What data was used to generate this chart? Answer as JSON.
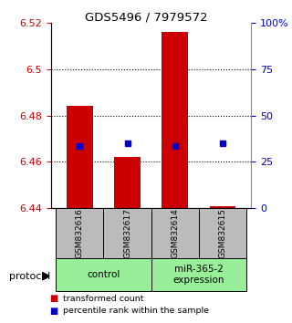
{
  "title": "GDS5496 / 7979572",
  "samples": [
    "GSM832616",
    "GSM832617",
    "GSM832614",
    "GSM832615"
  ],
  "bar_bottoms": [
    6.44,
    6.44,
    6.44,
    6.44
  ],
  "bar_tops": [
    6.484,
    6.462,
    6.516,
    6.441
  ],
  "percentile_values": [
    6.467,
    6.468,
    6.467,
    6.468
  ],
  "ylim_left": [
    6.44,
    6.52
  ],
  "ylim_right": [
    0,
    100
  ],
  "yticks_left": [
    6.44,
    6.46,
    6.48,
    6.5,
    6.52
  ],
  "yticks_right": [
    0,
    25,
    50,
    75,
    100
  ],
  "ytick_labels_left": [
    "6.44",
    "6.46",
    "6.48",
    "6.5",
    "6.52"
  ],
  "ytick_labels_right": [
    "0",
    "25",
    "50",
    "75",
    "100%"
  ],
  "bar_color": "#cc0000",
  "percentile_color": "#0000cc",
  "groups": [
    {
      "label": "control",
      "indices": [
        0,
        1
      ],
      "color": "#99ee99"
    },
    {
      "label": "miR-365-2\nexpression",
      "indices": [
        2,
        3
      ],
      "color": "#99ee99"
    }
  ],
  "sample_box_color": "#bbbbbb",
  "grid_color": "#000000",
  "protocol_label": "protocol",
  "legend_items": [
    {
      "color": "#cc0000",
      "label": "transformed count"
    },
    {
      "color": "#0000cc",
      "label": "percentile rank within the sample"
    }
  ],
  "bar_width": 0.55
}
